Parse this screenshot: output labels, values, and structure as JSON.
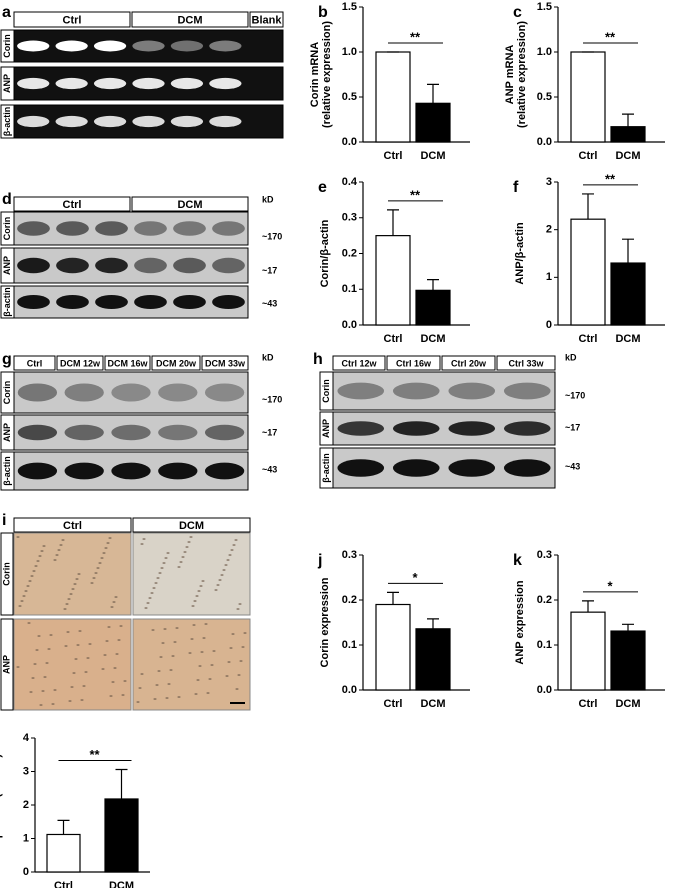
{
  "chart_data": [
    {
      "type": "bar",
      "panel": "b",
      "ylabel": [
        "Corin mRNA",
        "(relative expression)"
      ],
      "categories": [
        "Ctrl",
        "DCM"
      ],
      "values": [
        1.0,
        0.43
      ],
      "errors": [
        0,
        0.21
      ],
      "colors": [
        "#ffffff",
        "#000000"
      ],
      "ylim": [
        0,
        1.5
      ],
      "yticks": [
        {
          "value": 0,
          "label": "0.0"
        },
        0.5,
        {
          "value": 1,
          "label": "1.0"
        },
        1.5
      ],
      "significance": "**"
    },
    {
      "type": "bar",
      "panel": "c",
      "ylabel": [
        "ANP mRNA",
        "(relative expression)"
      ],
      "categories": [
        "Ctrl",
        "DCM"
      ],
      "values": [
        1.0,
        0.17
      ],
      "errors": [
        0,
        0.14
      ],
      "colors": [
        "#ffffff",
        "#000000"
      ],
      "ylim": [
        0,
        1.5
      ],
      "yticks": [
        {
          "value": 0,
          "label": "0.0"
        },
        0.5,
        {
          "value": 1,
          "label": "1.0"
        },
        1.5
      ],
      "significance": "**"
    },
    {
      "type": "bar",
      "panel": "e",
      "ylabel": [
        "Corin/β-actin"
      ],
      "categories": [
        "Ctrl",
        "DCM"
      ],
      "values": [
        0.25,
        0.097
      ],
      "errors": [
        0.072,
        0.03
      ],
      "colors": [
        "#ffffff",
        "#000000"
      ],
      "ylim": [
        0,
        0.4
      ],
      "yticks": [
        {
          "value": 0,
          "label": "0.0"
        },
        0.1,
        0.2,
        0.3,
        0.4
      ],
      "significance": "**"
    },
    {
      "type": "bar",
      "panel": "f",
      "ylabel": [
        "ANP/β-actin"
      ],
      "categories": [
        "Ctrl",
        "DCM"
      ],
      "values": [
        2.22,
        1.3
      ],
      "errors": [
        0.53,
        0.5
      ],
      "colors": [
        "#ffffff",
        "#000000"
      ],
      "ylim": [
        0,
        3
      ],
      "yticks": [
        0,
        1,
        2,
        3
      ],
      "significance": "**"
    },
    {
      "type": "bar",
      "panel": "j",
      "ylabel": [
        "Corin expression"
      ],
      "categories": [
        "Ctrl",
        "DCM"
      ],
      "values": [
        0.19,
        0.136
      ],
      "errors": [
        0.027,
        0.022
      ],
      "colors": [
        "#ffffff",
        "#000000"
      ],
      "ylim": [
        0,
        0.3
      ],
      "yticks": [
        {
          "value": 0,
          "label": "0.0"
        },
        0.1,
        0.2,
        0.3
      ],
      "significance": "*"
    },
    {
      "type": "bar",
      "panel": "k",
      "ylabel": [
        "ANP expression"
      ],
      "categories": [
        "Ctrl",
        "DCM"
      ],
      "values": [
        0.173,
        0.131
      ],
      "errors": [
        0.025,
        0.015
      ],
      "colors": [
        "#ffffff",
        "#000000"
      ],
      "ylim": [
        0,
        0.3
      ],
      "yticks": [
        {
          "value": 0,
          "label": "0.0"
        },
        0.1,
        0.2,
        0.3
      ],
      "significance": "*"
    },
    {
      "type": "bar",
      "panel": "l",
      "ylabel": [
        "NT-proANP(nmol/L)"
      ],
      "categories": [
        "Ctrl",
        "DCM"
      ],
      "values": [
        1.12,
        2.18
      ],
      "errors": [
        0.42,
        0.88
      ],
      "colors": [
        "#ffffff",
        "#000000"
      ],
      "ylim": [
        0,
        4
      ],
      "yticks": [
        0,
        1,
        2,
        3,
        4
      ],
      "significance": "**"
    }
  ],
  "blots": [
    {
      "panel": "a",
      "header": [
        "Ctrl",
        "DCM",
        "Blank"
      ],
      "rows": [
        "Corin",
        "ANP",
        "β-actin"
      ]
    },
    {
      "panel": "d",
      "header": [
        "Ctrl",
        "DCM"
      ],
      "unit": "kD",
      "rows": [
        "Corin",
        "ANP",
        "β-actin"
      ],
      "sizes": [
        "~170",
        "~17",
        "~43"
      ]
    },
    {
      "panel": "g",
      "header": [
        "Ctrl",
        "DCM 12w",
        "DCM 16w",
        "DCM 20w",
        "DCM 33w"
      ],
      "unit": "kD",
      "rows": [
        "Corin",
        "ANP",
        "β-actin"
      ],
      "sizes": [
        "~170",
        "~17",
        "~43"
      ]
    },
    {
      "panel": "h",
      "header": [
        "Ctrl 12w",
        "Ctrl 16w",
        "Ctrl 20w",
        "Ctrl 33w"
      ],
      "unit": "kD",
      "rows": [
        "Corin",
        "ANP",
        "β-actin"
      ],
      "sizes": [
        "~170",
        "~17",
        "~43"
      ]
    }
  ],
  "histology": {
    "panel": "i",
    "header": [
      "Ctrl",
      "DCM"
    ],
    "rows": [
      "Corin",
      "ANP"
    ]
  }
}
